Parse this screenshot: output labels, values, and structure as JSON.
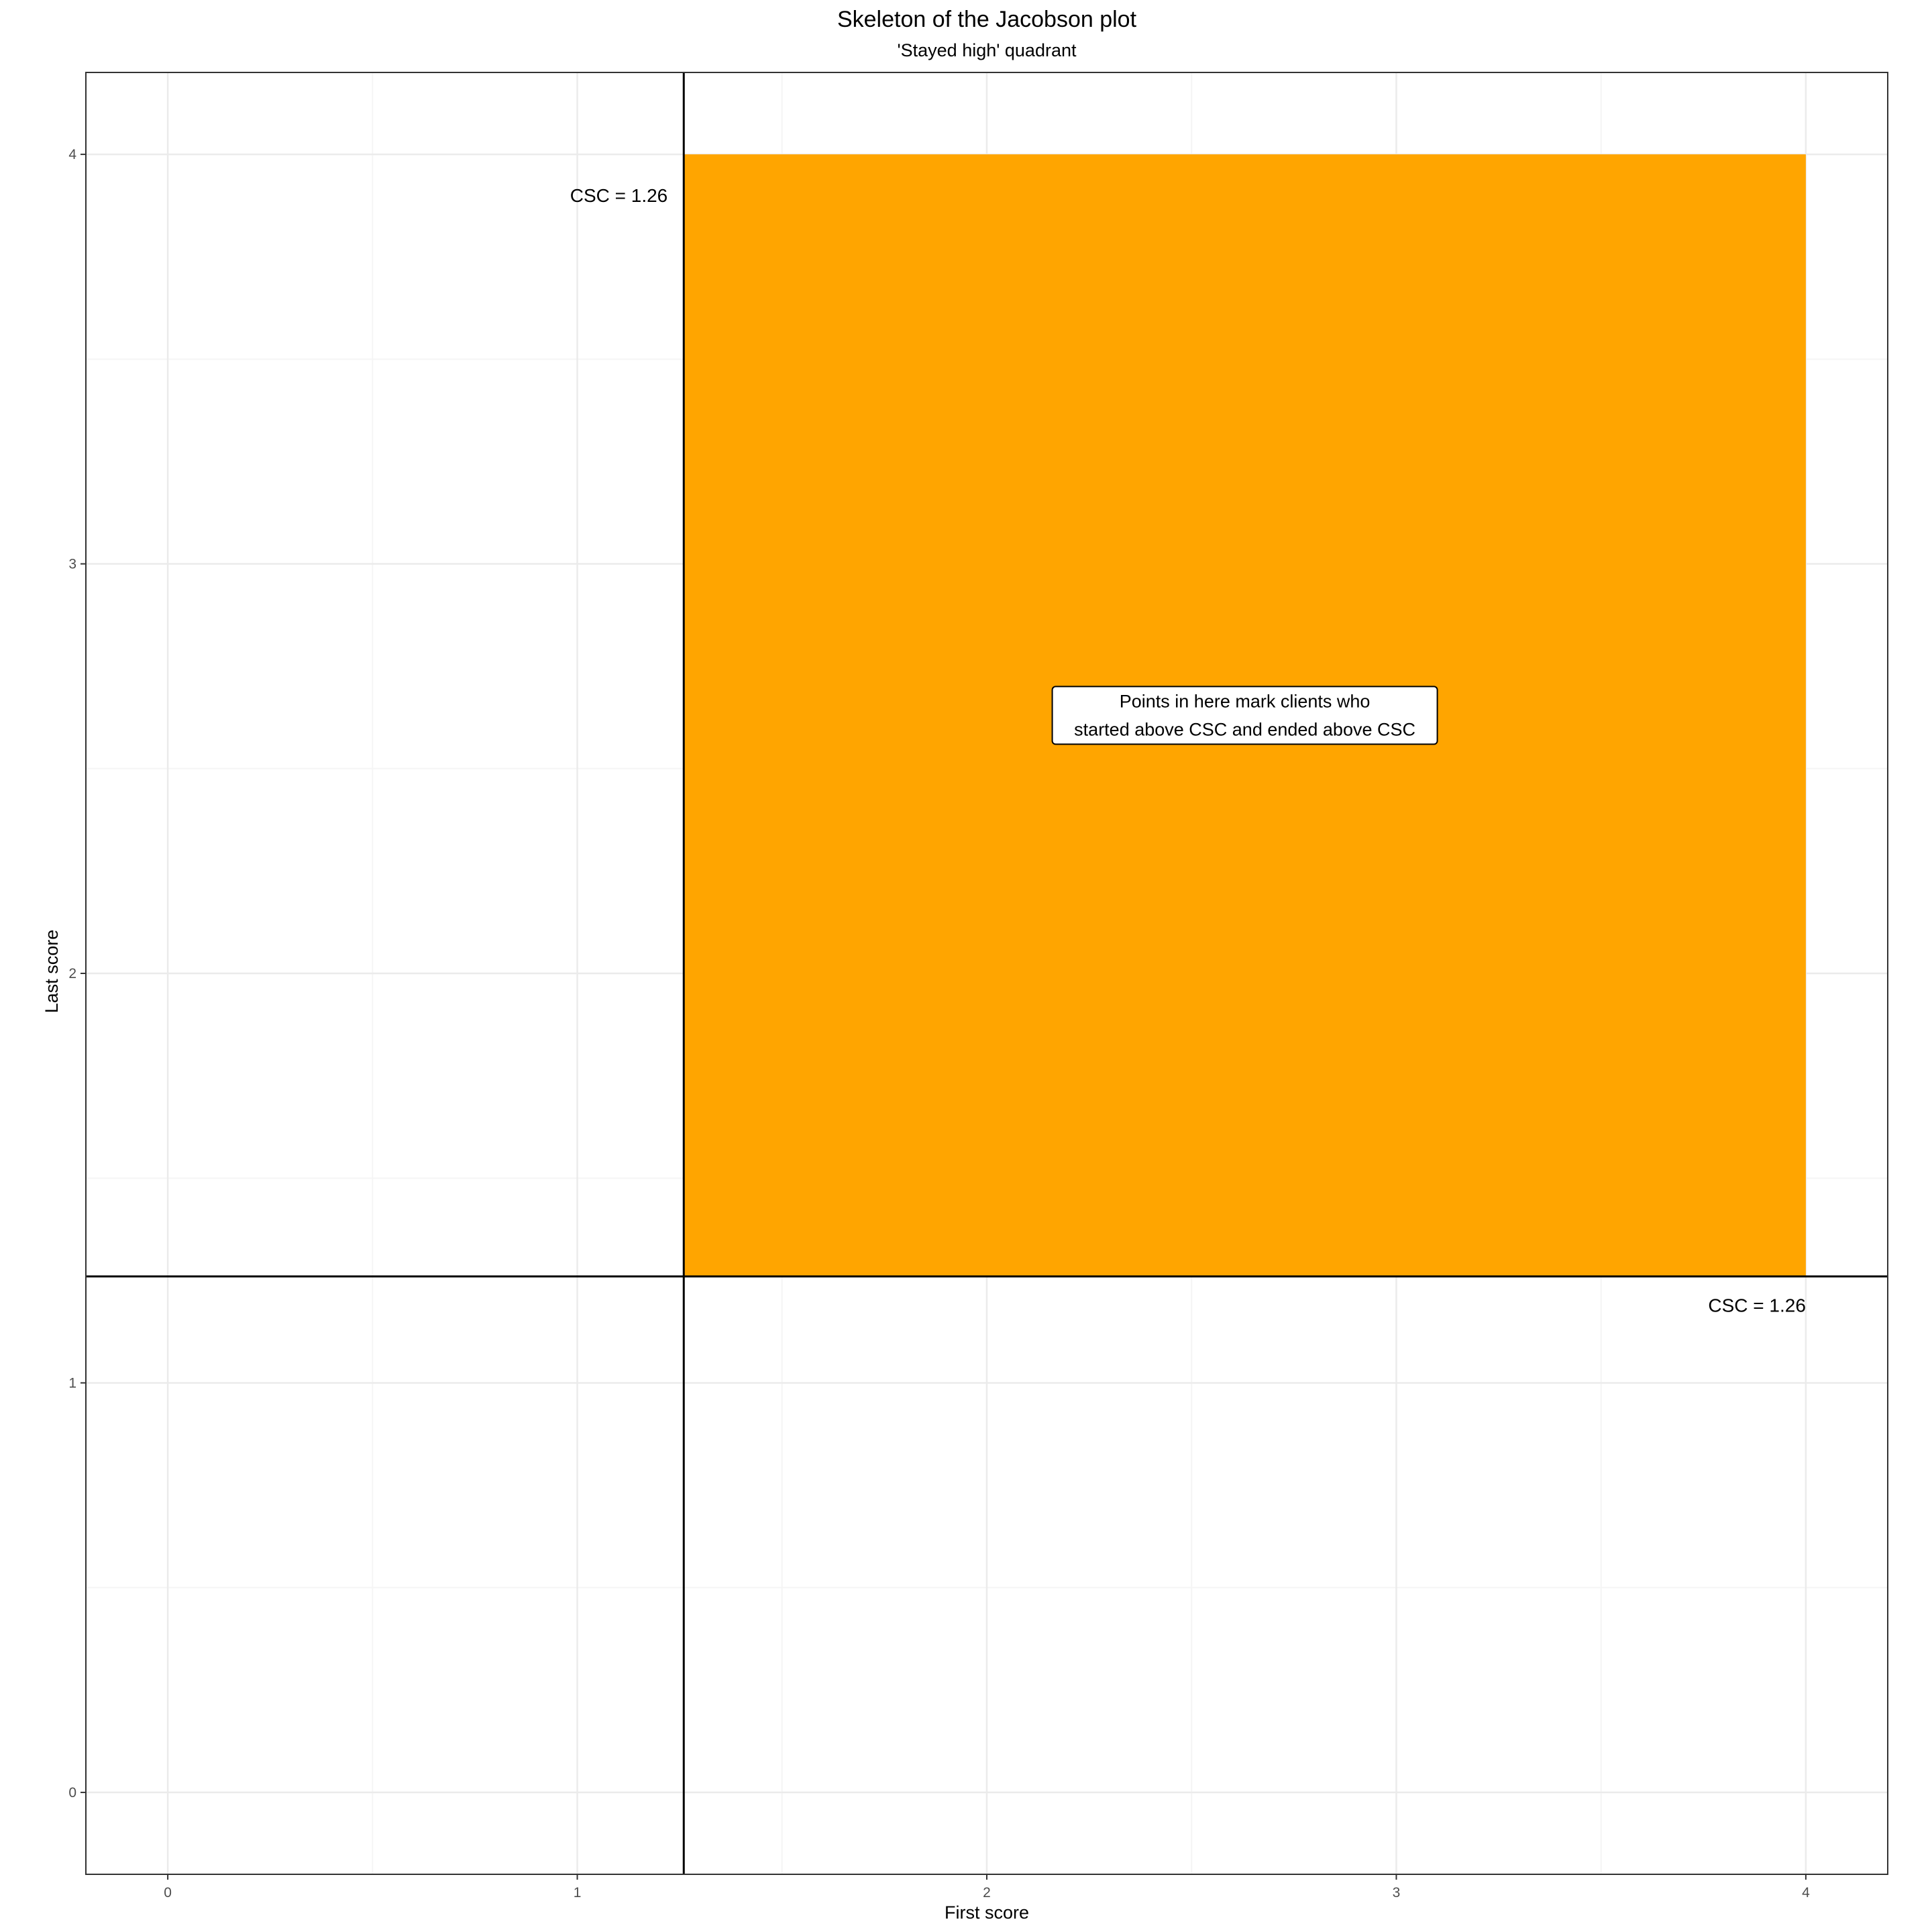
{
  "chart_data": {
    "type": "scatter",
    "title": "Skeleton of the Jacobson plot",
    "subtitle": "'Stayed high' quadrant",
    "xlabel": "First score",
    "ylabel": "Last score",
    "xlim": [
      -0.2,
      4.2
    ],
    "ylim": [
      -0.2,
      4.2
    ],
    "x_ticks": [
      0,
      1,
      2,
      3,
      4
    ],
    "y_ticks": [
      0,
      1,
      2,
      3,
      4
    ],
    "x_tick_labels": [
      "0",
      "1",
      "2",
      "3",
      "4"
    ],
    "y_tick_labels": [
      "0",
      "1",
      "2",
      "3",
      "4"
    ],
    "grid": true,
    "csc": 1.26,
    "reference_lines": [
      {
        "orientation": "vertical",
        "value": 1.26
      },
      {
        "orientation": "horizontal",
        "value": 1.26
      }
    ],
    "highlighted_region": {
      "x": [
        1.26,
        4
      ],
      "y": [
        1.26,
        4
      ],
      "color": "#FFA500"
    },
    "annotations": [
      {
        "id": "csc-vertical",
        "text": "CSC = 1.26",
        "x": 1.26,
        "y": 3.9
      },
      {
        "id": "csc-horizontal",
        "text": "CSC = 1.26",
        "x": 4,
        "y": 1.19
      },
      {
        "id": "quadrant-note",
        "lines": [
          "Points in here mark clients who",
          "started above CSC and ended above CSC"
        ],
        "x": 2.63,
        "y": 2.63
      }
    ],
    "points": []
  },
  "colors": {
    "quadrant_fill": "#FFA500",
    "grid_major": "#ebebeb",
    "grid_minor": "#f5f5f5",
    "panel_border": "#333333",
    "reference_line": "#000000"
  }
}
